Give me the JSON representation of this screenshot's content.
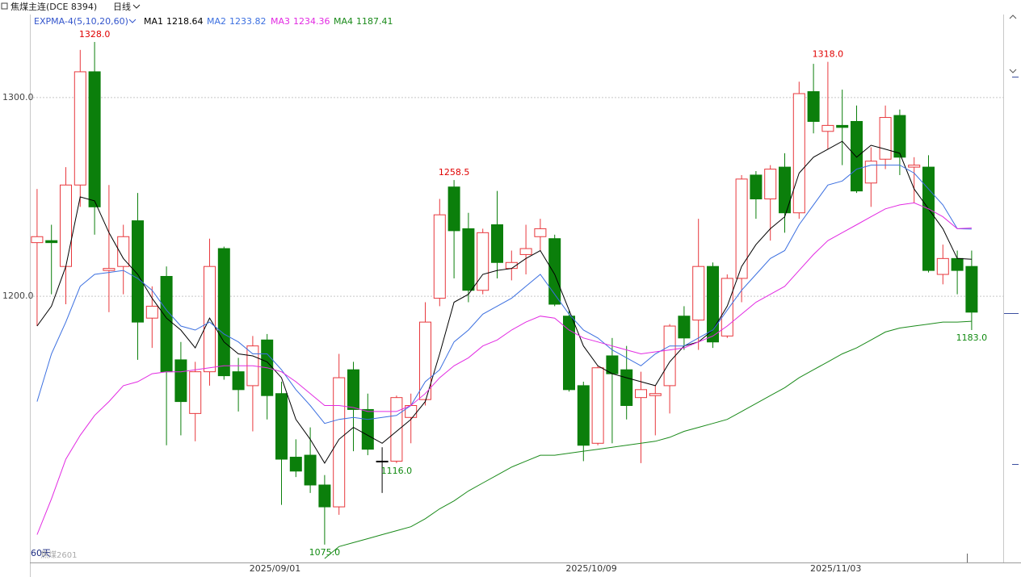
{
  "chart_data": {
    "type": "candlestick",
    "title": "焦煤主连(DCE 8394)",
    "period": "日线",
    "indicator": "EXPMA-4(5,10,20,60)",
    "categories": [
      null,
      null,
      null,
      null,
      null,
      null,
      null,
      null,
      null,
      null,
      null,
      null,
      null,
      null,
      null,
      null,
      null,
      "2025/09/01",
      null,
      null,
      null,
      null,
      null,
      null,
      null,
      null,
      null,
      null,
      null,
      null,
      null,
      null,
      null,
      null,
      null,
      null,
      null,
      null,
      null,
      "2025/10/09",
      null,
      null,
      null,
      null,
      null,
      null,
      null,
      null,
      null,
      null,
      null,
      null,
      null,
      null,
      null,
      null,
      "2025/11/03",
      null,
      null,
      null,
      null,
      null,
      null,
      null,
      null,
      null
    ],
    "open": [
      1227,
      1228,
      1215,
      1256,
      1313,
      1213,
      1215,
      1238,
      1189,
      1210,
      1168,
      1141,
      1162,
      1224,
      1162,
      1155,
      1178,
      1151,
      1119,
      1120,
      1105,
      1094,
      1163,
      1143,
      1117,
      1117,
      1139,
      1148,
      1199,
      1255,
      1234,
      1203,
      1236,
      1214,
      1221,
      1230,
      1229,
      1190,
      1155,
      1126,
      1170,
      1163,
      1149,
      1150,
      1155,
      1190,
      1188,
      1215,
      1180,
      1209,
      1261,
      1249,
      1265,
      1242,
      1303,
      1283,
      1286,
      1288,
      1257,
      1269,
      1291,
      1265,
      1265,
      1211,
      1219,
      1215
    ],
    "close": [
      1230,
      1227,
      1256,
      1313,
      1245,
      1214,
      1230,
      1187,
      1195,
      1162,
      1147,
      1162,
      1215,
      1160,
      1153,
      1175,
      1150,
      1118,
      1112,
      1105,
      1094,
      1159,
      1143,
      1123,
      1117,
      1149,
      1145,
      1187,
      1241,
      1233,
      1203,
      1232,
      1217,
      1217,
      1224,
      1234,
      1196,
      1153,
      1125,
      1164,
      1161,
      1145,
      1153,
      1151,
      1185,
      1179,
      1215,
      1177,
      1209,
      1259,
      1249,
      1264,
      1242,
      1302,
      1288,
      1286,
      1285,
      1253,
      1268,
      1290,
      1270,
      1266,
      1213,
      1219,
      1213,
      1192
    ],
    "high": [
      1254,
      1236,
      1265,
      1324,
      1328,
      1256,
      1236,
      1252,
      1205,
      1215,
      1177,
      1167,
      1229,
      1225,
      1169,
      1180,
      1181,
      1157,
      1128,
      1134,
      1110,
      1171,
      1167,
      1151,
      1124,
      1150,
      1151,
      1197,
      1249,
      1258.5,
      1242,
      1234,
      1253,
      1223,
      1236,
      1239,
      1231,
      1193,
      1157,
      1165,
      1179,
      1175,
      1162,
      1155,
      1186,
      1195,
      1239,
      1217,
      1211,
      1261,
      1263,
      1266,
      1272,
      1308,
      1317,
      1318,
      1304,
      1296,
      1275,
      1296,
      1294,
      1270,
      1271,
      1226,
      1223,
      1223
    ],
    "low": [
      1185,
      1201,
      1196,
      1245,
      1231,
      1192,
      1201,
      1168,
      1174,
      1125,
      1130,
      1127,
      1155,
      1158,
      1142,
      1132,
      1138,
      1095,
      1109,
      1101,
      1075,
      1090,
      1122,
      1120,
      1101,
      1116,
      1126,
      1145,
      1195,
      1209,
      1197,
      1201,
      1209,
      1208,
      1211,
      1223,
      1195,
      1152,
      1117,
      1125,
      1126,
      1138,
      1116,
      1130,
      1141,
      1173,
      1173,
      1174,
      1179,
      1197,
      1239,
      1228,
      1232,
      1239,
      1282,
      1274,
      1266,
      1252,
      1245,
      1264,
      1261,
      1247,
      1212,
      1206,
      1201,
      1183
    ],
    "up_color": "#e8383d",
    "down_color": "#0b7f0b",
    "series": [
      {
        "name": "MA1",
        "color": "#000000",
        "values": [
          1185,
          1195,
          1215,
          1250,
          1248,
          1232,
          1219,
          1211,
          1199,
          1189,
          1183,
          1174,
          1189,
          1177,
          1171,
          1170,
          1167,
          1159,
          1138,
          1128,
          1116,
          1128,
          1134,
          1130,
          1126,
          1132,
          1138,
          1147,
          1171,
          1197,
          1201,
          1211,
          1213,
          1214,
          1219,
          1223,
          1211,
          1193,
          1175,
          1165,
          1161,
          1159,
          1157,
          1155,
          1167,
          1175,
          1177,
          1183,
          1195,
          1215,
          1226,
          1234,
          1240,
          1262,
          1270,
          1274,
          1278,
          1270,
          1276,
          1274,
          1272,
          1254,
          1244,
          1234,
          1219,
          1218.64
        ]
      },
      {
        "name": "MA2",
        "color": "#3b6fe0",
        "values": [
          1147,
          1171,
          1187,
          1205,
          1211,
          1212,
          1213,
          1209,
          1203,
          1193,
          1185,
          1183,
          1187,
          1181,
          1177,
          1171,
          1171,
          1163,
          1153,
          1145,
          1136,
          1138,
          1139,
          1138,
          1139,
          1140,
          1145,
          1157,
          1163,
          1177,
          1183,
          1191,
          1195,
          1199,
          1205,
          1211,
          1201,
          1191,
          1183,
          1179,
          1173,
          1169,
          1165,
          1171,
          1175,
          1175,
          1179,
          1183,
          1193,
          1203,
          1211,
          1219,
          1223,
          1236,
          1246,
          1256,
          1258,
          1264,
          1266,
          1266,
          1266,
          1262,
          1254,
          1246,
          1234,
          1233.82
        ]
      },
      {
        "name": "MA3",
        "color": "#e22ae2",
        "values": [
          1080,
          1098,
          1118,
          1130,
          1140,
          1147,
          1155,
          1157,
          1161,
          1162,
          1162,
          1163,
          1164,
          1165,
          1165,
          1165,
          1164,
          1162,
          1157,
          1151,
          1145,
          1145,
          1144,
          1142,
          1142,
          1142,
          1145,
          1151,
          1159,
          1165,
          1169,
          1175,
          1178,
          1183,
          1187,
          1190,
          1189,
          1183,
          1179,
          1177,
          1175,
          1173,
          1171,
          1172,
          1173,
          1174,
          1177,
          1180,
          1185,
          1191,
          1197,
          1201,
          1205,
          1213,
          1221,
          1228,
          1232,
          1236,
          1240,
          1244,
          1246,
          1247,
          1244,
          1240,
          1234,
          1234.36
        ]
      },
      {
        "name": "MA4",
        "color": "#1a8a1a",
        "values": [
          null,
          null,
          null,
          null,
          null,
          null,
          null,
          null,
          null,
          null,
          null,
          null,
          null,
          null,
          null,
          null,
          null,
          null,
          null,
          null,
          1068,
          1074,
          1076,
          1078,
          1080,
          1082,
          1084,
          1088,
          1093,
          1097,
          1102,
          1106,
          1110,
          1114,
          1117,
          1120,
          1120,
          1121,
          1122,
          1123,
          1124,
          1125,
          1126,
          1127,
          1129,
          1132,
          1134,
          1136,
          1138,
          1142,
          1146,
          1150,
          1154,
          1159,
          1163,
          1167,
          1171,
          1174,
          1178,
          1182,
          1184,
          1185,
          1186,
          1187,
          1187,
          1187.41
        ]
      }
    ],
    "ylim": [
      1066,
      1341
    ],
    "yticks": [
      {
        "value": 1300,
        "label": "1300.0"
      },
      {
        "value": 1200,
        "label": "1200.0"
      }
    ],
    "grid": true,
    "high_labels": [
      {
        "value": 1328,
        "label": "1328.0"
      },
      {
        "value": 1258.5,
        "label": "1258.5"
      },
      {
        "value": 1318,
        "label": "1318.0"
      }
    ],
    "low_labels": [
      {
        "value": 1075,
        "label": "1075.0"
      },
      {
        "value": 1116,
        "label": "1116.0"
      },
      {
        "value": 1183,
        "label": "1183.0"
      }
    ],
    "high_color": "#e00000",
    "low_color": "#118a11",
    "footer": {
      "window": "60天",
      "contract": "焦煤2601"
    }
  }
}
